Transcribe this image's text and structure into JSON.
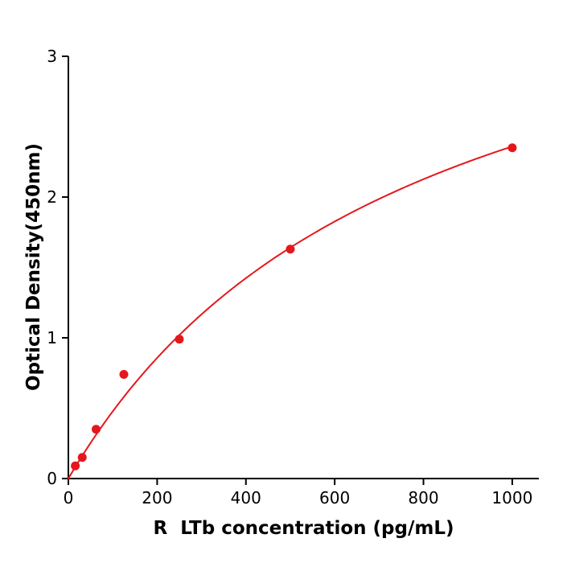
{
  "chart_data": {
    "type": "scatter",
    "title": "",
    "xlabel": "R  LTb concentration (pg/mL)",
    "ylabel": "Optical Density(450nm)",
    "series": [
      {
        "name": "standard-curve-points",
        "x": [
          15.6,
          31.2,
          62.5,
          125,
          250,
          500,
          1000
        ],
        "y": [
          0.09,
          0.15,
          0.35,
          0.74,
          0.99,
          1.63,
          2.35
        ]
      }
    ],
    "xlim": [
      0,
      1060
    ],
    "ylim": [
      0,
      3
    ],
    "xticks": [
      0,
      200,
      400,
      600,
      800,
      1000
    ],
    "yticks": [
      0,
      1,
      2,
      3
    ],
    "grid": false,
    "legend": "none",
    "marker_color": "#e4181c",
    "line_color": "#e4181c",
    "axis_color": "#000000",
    "tick_label_color": "#000000",
    "curve_fit": {
      "type": "saturation_binding",
      "vmax": 4.2,
      "km": 780
    }
  }
}
